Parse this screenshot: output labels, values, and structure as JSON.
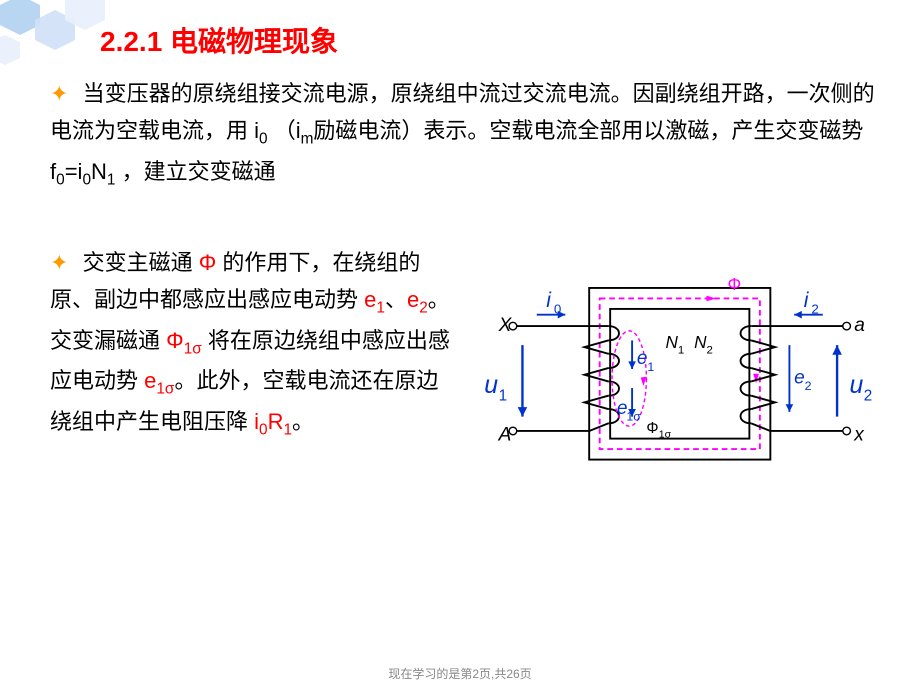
{
  "title": "2.2.1  电磁物理现象",
  "para1_html": "当变压器的原绕组接交流电源，原绕组中流过交流电流。因副绕组开路，一次侧的电流为空载电流，用 i<span class='sub'>0</span> （i<span class='sub'>m</span>励磁电流）表示。空载电流全部用以激磁，产生交变磁势 f<span class='sub'>0</span>=i<span class='sub'>0</span>N<span class='sub'>1</span> ，建立交变磁通",
  "para2_html": "交变主磁通 <span class='red'>Φ</span> 的作用下，在绕组的原、副边中都感应出感应电动势 <span class='red'>e<span class='sub'>1</span></span>、<span class='red'>e<span class='sub'>2</span></span>。交变漏磁通 <span class='red'>Φ<span class='sub'>1σ</span></span> 将在原边绕组中感应出感应电动势 <span class='red'>e<span class='sub'>1σ</span></span>。此外，空载电流还在原边绕组中产生电阻压降 <span class='red'>i<span class='sub'>0</span>R<span class='sub'>1</span></span>。",
  "footer": "现在学习的是第2页,共26页",
  "diagram": {
    "colors": {
      "core": "#000000",
      "flux": "#ff00ff",
      "leakage": "#ff00ff",
      "current": "#0033cc",
      "label": "#000000",
      "wire": "#000000"
    },
    "labels": {
      "X": "X",
      "A": "A",
      "a": "a",
      "x": "x",
      "u1": "u",
      "u1_sub": "1",
      "u2": "u",
      "u2_sub": "2",
      "i0": "i",
      "i0_sub": "0",
      "i2": "i",
      "i2_sub": "2",
      "e1": "e",
      "e1_sub": "1",
      "e2": "e",
      "e2_sub": "2",
      "e1s": "e",
      "e1s_sub": "1σ",
      "N1": "N",
      "N1_sub": "1",
      "N2": "N",
      "N2_sub": "2",
      "Phi": "Φ",
      "Phi1s": "Φ",
      "Phi1s_sub": "1σ"
    }
  },
  "hex_colors": [
    "#b0d0f0",
    "#d0e0f8",
    "#e8f0fc"
  ]
}
